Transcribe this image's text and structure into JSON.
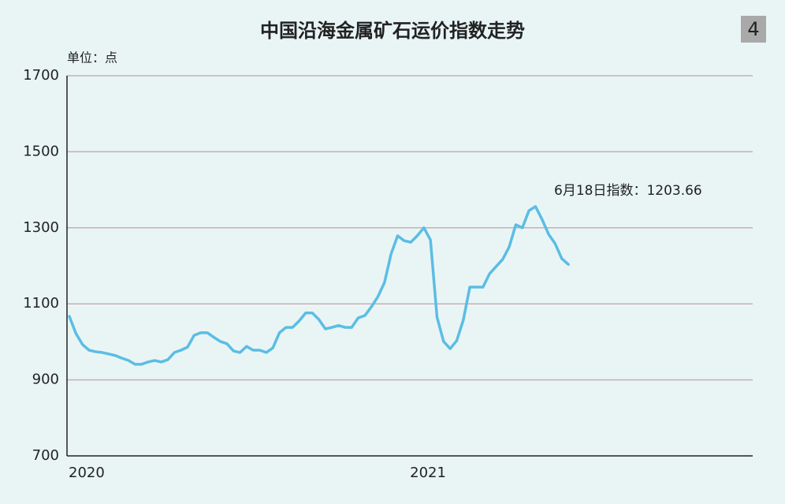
{
  "chart_data": {
    "type": "line",
    "title": "中国沿海金属矿石运价指数走势",
    "badge": "4",
    "y_axis_label": "单位：点",
    "annotation": "6月18日指数：1203.66",
    "categories": [
      "2020",
      null,
      null,
      null,
      null,
      null,
      null,
      null,
      null,
      null,
      null,
      null,
      null,
      null,
      null,
      null,
      null,
      null,
      null,
      null,
      null,
      null,
      null,
      null,
      null,
      null,
      null,
      null,
      null,
      null,
      null,
      null,
      null,
      null,
      null,
      null,
      null,
      null,
      null,
      null,
      null,
      null,
      null,
      null,
      null,
      null,
      null,
      null,
      null,
      null,
      null,
      null,
      "2021",
      null,
      null,
      null,
      null,
      null,
      null,
      null,
      null,
      null,
      null,
      null,
      null,
      null,
      null,
      null,
      null,
      null,
      null,
      null,
      null,
      null,
      null,
      null,
      null
    ],
    "values": [
      1067,
      1022,
      993,
      978,
      974,
      972,
      968,
      964,
      957,
      951,
      941,
      941,
      947,
      951,
      947,
      953,
      972,
      978,
      986,
      1017,
      1024,
      1024,
      1012,
      1001,
      995,
      976,
      972,
      988,
      978,
      978,
      972,
      984,
      1024,
      1038,
      1038,
      1055,
      1076,
      1076,
      1059,
      1034,
      1038,
      1043,
      1038,
      1038,
      1063,
      1069,
      1092,
      1119,
      1156,
      1231,
      1279,
      1266,
      1262,
      1279,
      1300,
      1268,
      1065,
      1001,
      982,
      1003,
      1057,
      1144,
      1144,
      1144,
      1179,
      1198,
      1217,
      1250,
      1308,
      1300,
      1345,
      1356,
      1322,
      1283,
      1258,
      1219,
      1203.66
    ],
    "color": "#5bbde4",
    "ylim": [
      700,
      1700
    ],
    "yticks": [
      700,
      900,
      1100,
      1300,
      1500,
      1700
    ],
    "grid": true
  }
}
